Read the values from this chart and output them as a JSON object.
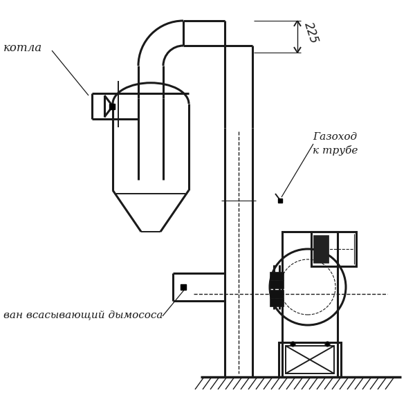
{
  "bg_color": "#ffffff",
  "lc": "#1a1a1a",
  "lw": 1.4,
  "lw2": 2.2,
  "lw3": 3.0,
  "label_kotla": "котла",
  "label_gazokhod_1": "Газоход",
  "label_gazokhod_2": "к трубе",
  "label_vsan": "ван всасывающий дымососа",
  "dim_225": "225",
  "figsize": [
    6.0,
    6.0
  ],
  "dpi": 100
}
